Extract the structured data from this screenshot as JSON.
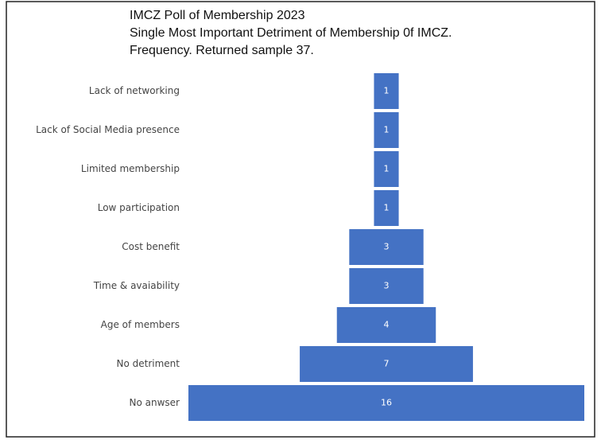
{
  "chart_data": {
    "type": "funnel",
    "title": [
      "IMCZ Poll of Membership 2023",
      "Single Most Important Detriment of Membership 0f IMCZ.",
      "Frequency. Returned sample 37."
    ],
    "categories": [
      "Lack of networking",
      "Lack of Social Media presence",
      "Limited membership",
      "Low participation",
      "Cost benefit",
      "Time & avaiability",
      "Age of members",
      "No detriment",
      "No anwser"
    ],
    "values": [
      1,
      1,
      1,
      1,
      3,
      3,
      4,
      7,
      16
    ],
    "color": "#4472c4"
  }
}
